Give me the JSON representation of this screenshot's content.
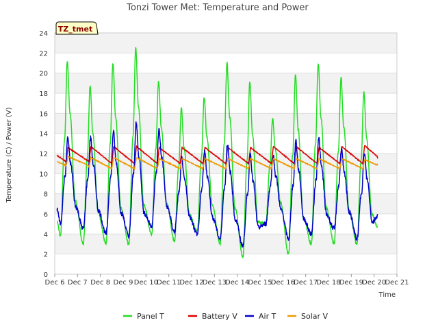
{
  "chart_data": {
    "type": "line",
    "title": "Tonzi Tower Met: Temperature and Power",
    "xlabel": "Time",
    "ylabel": "Temperature (C) / Power (V)",
    "ylim": [
      0,
      24
    ],
    "xlim": [
      6,
      21
    ],
    "grid": "horizontal bands",
    "legend_position": "bottom",
    "badge": "TZ_tmet",
    "y_ticks": [
      "0",
      "2",
      "4",
      "6",
      "8",
      "10",
      "12",
      "14",
      "16",
      "18",
      "20",
      "22",
      "24"
    ],
    "x_ticks": [
      "Dec 6",
      "Dec 7",
      "Dec 8",
      "Dec 9",
      "Dec 10",
      "Dec 11",
      "Dec 12",
      "Dec 13",
      "Dec 14",
      "Dec 15",
      "Dec 16",
      "Dec 17",
      "Dec 18",
      "Dec 19",
      "Dec 20",
      "Dec 21"
    ],
    "days": [
      7,
      8,
      9,
      10,
      11,
      12,
      13,
      14,
      15,
      16,
      17,
      18,
      19,
      20
    ],
    "series": [
      {
        "name": "Panel T",
        "color": "#22dd22",
        "day_max": [
          21.2,
          18.8,
          21.0,
          22.5,
          19.2,
          16.5,
          17.6,
          21.0,
          19.1,
          15.5,
          19.8,
          21.0,
          19.6,
          18.1
        ],
        "night_min": [
          3.8,
          3.0,
          3.0,
          3.0,
          4.0,
          3.3,
          4.3,
          3.0,
          1.7,
          5.0,
          2.0,
          3.0,
          3.0,
          3.0
        ],
        "end": 4.7
      },
      {
        "name": "Battery V",
        "color": "#dd0000",
        "day_max": [
          12.6,
          12.7,
          12.7,
          12.7,
          12.6,
          12.6,
          12.6,
          12.6,
          12.6,
          12.7,
          12.7,
          12.6,
          12.7,
          12.8
        ],
        "night_min": [
          11.2,
          11.0,
          11.0,
          11.0,
          11.0,
          11.0,
          11.0,
          11.0,
          11.0,
          11.0,
          11.0,
          11.0,
          11.0,
          11.0
        ],
        "end": 11.5
      },
      {
        "name": "Air T",
        "color": "#0000cc",
        "day_max": [
          13.6,
          13.6,
          14.2,
          15.0,
          14.4,
          11.5,
          12.2,
          13.0,
          12.0,
          11.8,
          13.3,
          13.6,
          12.4,
          12.0
        ],
        "night_min": [
          5.0,
          4.5,
          4.0,
          3.8,
          4.8,
          4.2,
          4.0,
          3.5,
          2.8,
          5.0,
          3.5,
          4.0,
          4.5,
          3.5
        ],
        "end": 5.8
      },
      {
        "name": "Solar V",
        "color": "#ee9900",
        "day_max": [
          11.7,
          11.6,
          11.6,
          11.6,
          11.5,
          11.5,
          11.5,
          11.5,
          11.5,
          11.5,
          11.5,
          11.5,
          11.5,
          11.4
        ],
        "night_min": [
          10.8,
          10.5,
          10.5,
          10.5,
          10.5,
          10.5,
          10.5,
          10.5,
          10.5,
          10.5,
          10.5,
          10.5,
          10.5,
          10.5
        ],
        "end": 11.0
      }
    ]
  }
}
